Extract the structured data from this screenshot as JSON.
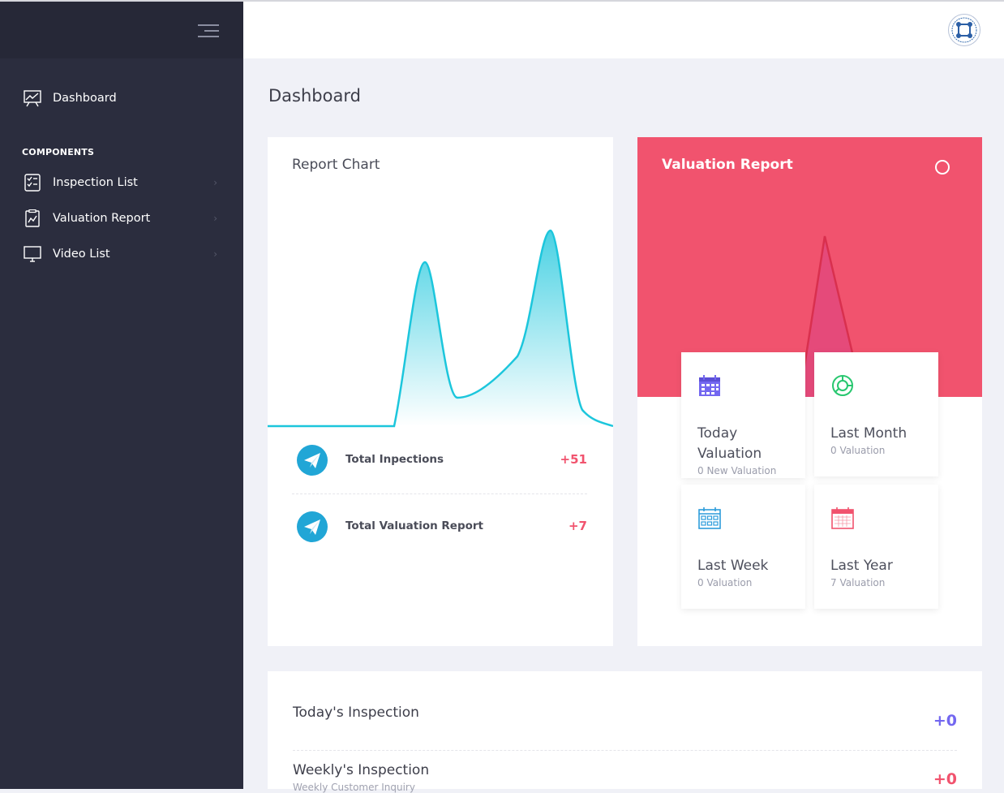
{
  "sidebar": {
    "items": [
      {
        "label": "Dashboard",
        "icon": "presentation-chart-icon"
      },
      {
        "label": "Inspection List",
        "icon": "checklist-icon"
      },
      {
        "label": "Valuation Report",
        "icon": "clipboard-chart-icon"
      },
      {
        "label": "Video List",
        "icon": "monitor-icon"
      }
    ],
    "section_label": "COMPONENTS",
    "chevron": "›"
  },
  "header": {
    "avatar_icon": "logo-seal-icon"
  },
  "page_title": "Dashboard",
  "report_chart": {
    "title": "Report Chart",
    "stats": [
      {
        "label": "Total Inpections",
        "value": "+51",
        "icon": "paper-plane-icon"
      },
      {
        "label": "Total Valuation Report",
        "value": "+7",
        "icon": "paper-plane-icon"
      }
    ]
  },
  "valuation_report": {
    "title": "Valuation Report",
    "tiles": [
      {
        "title": "Today Valuation",
        "sub": "0 New Valuation",
        "icon": "calendar-icon",
        "color": "#7367f0"
      },
      {
        "title": "Last Month",
        "sub": "0 Valuation",
        "icon": "donut-chart-icon",
        "color": "#28c76f"
      },
      {
        "title": "Last Week",
        "sub": "0 Valuation",
        "icon": "calendar-grid-icon",
        "color": "#2d9cdb"
      },
      {
        "title": "Last Year",
        "sub": "7 Valuation",
        "icon": "calendar-year-icon",
        "color": "#f1536e"
      }
    ]
  },
  "inspections": [
    {
      "title": "Today's Inspection",
      "value": "+0",
      "color": "#7367f0"
    },
    {
      "title": "Weekly's Inspection",
      "sub": "Weekly Customer Inquiry",
      "value": "+0",
      "color": "#f1536e"
    }
  ],
  "colors": {
    "sidebar": "#2b2d3e",
    "accent_pink": "#f1536e",
    "accent_cyan": "#1cc6dc",
    "accent_purple": "#7367f0"
  }
}
